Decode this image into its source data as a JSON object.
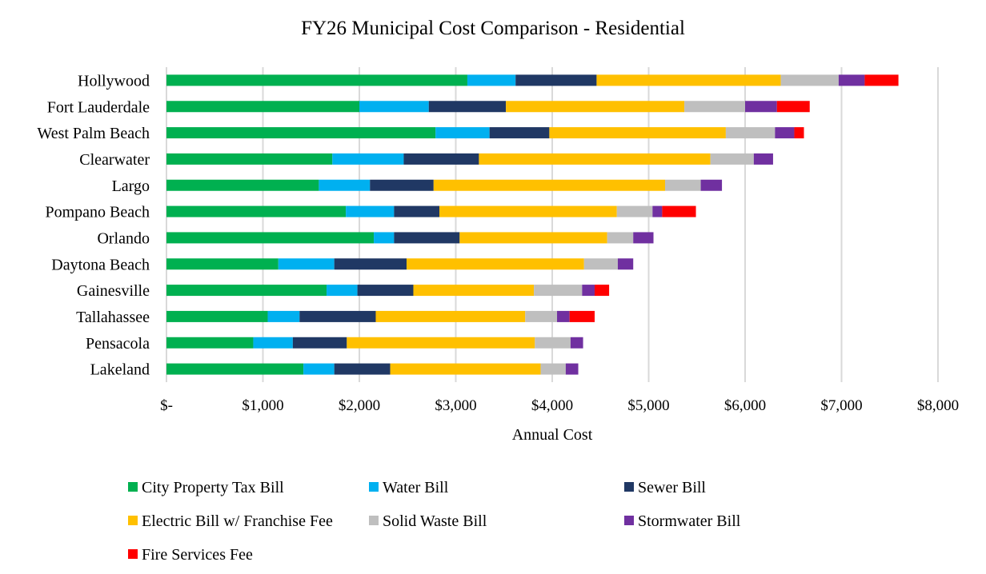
{
  "chart_data": {
    "type": "bar",
    "orientation": "horizontal",
    "stacked": true,
    "title": "FY26 Municipal Cost Comparison - Residential",
    "xlabel": "Annual Cost",
    "ylabel": "",
    "xlim": [
      0,
      8000
    ],
    "x_ticks": [
      0,
      1000,
      2000,
      3000,
      4000,
      5000,
      6000,
      7000,
      8000
    ],
    "x_tick_labels": [
      "$-",
      "$1,000",
      "$2,000",
      "$3,000",
      "$4,000",
      "$5,000",
      "$6,000",
      "$7,000",
      "$8,000"
    ],
    "grid": "vertical",
    "legend_position": "bottom",
    "categories": [
      "Hollywood",
      "Fort Lauderdale",
      "West Palm Beach",
      "Clearwater",
      "Largo",
      "Pompano Beach",
      "Orlando",
      "Daytona Beach",
      "Gainesville",
      "Tallahassee",
      "Pensacola",
      "Lakeland"
    ],
    "series": [
      {
        "name": "City Property Tax Bill",
        "color": "#00B050",
        "values": [
          3120,
          2000,
          2790,
          1720,
          1580,
          1860,
          2150,
          1160,
          1660,
          1050,
          900,
          1420
        ]
      },
      {
        "name": "Water Bill",
        "color": "#00B0F0",
        "values": [
          500,
          720,
          560,
          740,
          530,
          500,
          210,
          580,
          320,
          330,
          410,
          320
        ]
      },
      {
        "name": "Sewer Bill",
        "color": "#203864",
        "values": [
          840,
          800,
          620,
          780,
          660,
          470,
          680,
          750,
          580,
          790,
          560,
          580
        ]
      },
      {
        "name": "Electric Bill w/ Franchise Fee",
        "color": "#FFC000",
        "values": [
          1910,
          1850,
          1830,
          2400,
          2400,
          1840,
          1530,
          1840,
          1250,
          1550,
          1950,
          1560
        ]
      },
      {
        "name": "Solid Waste Bill",
        "color": "#BFBFBF",
        "values": [
          600,
          630,
          510,
          450,
          370,
          370,
          270,
          350,
          500,
          330,
          370,
          260
        ]
      },
      {
        "name": "Stormwater Bill",
        "color": "#7030A0",
        "values": [
          270,
          330,
          200,
          200,
          220,
          100,
          210,
          160,
          130,
          130,
          130,
          130
        ]
      },
      {
        "name": "Fire Services Fee",
        "color": "#FF0000",
        "values": [
          350,
          340,
          100,
          0,
          0,
          350,
          0,
          0,
          150,
          260,
          0,
          0
        ]
      }
    ]
  }
}
